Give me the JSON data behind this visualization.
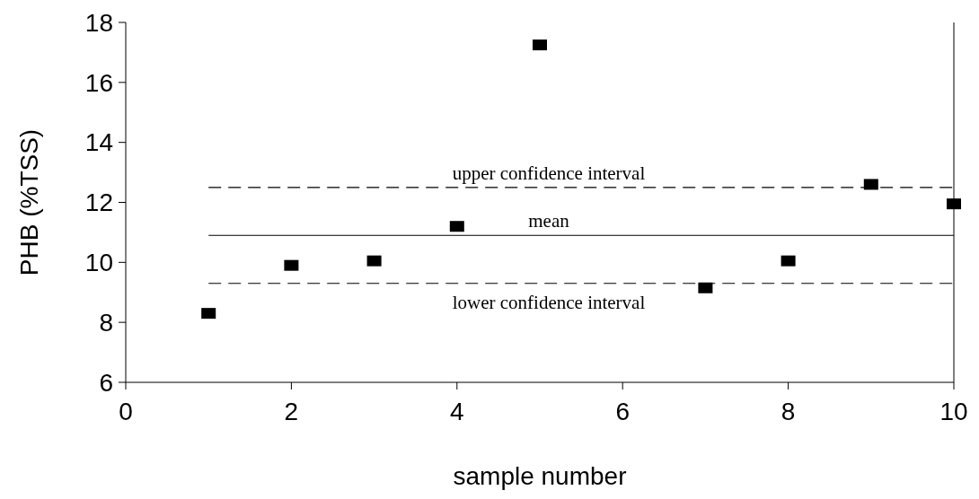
{
  "chart_data": {
    "type": "scatter",
    "xlabel": "sample number",
    "ylabel": "PHB (%TSS)",
    "x": [
      1,
      2,
      3,
      4,
      5,
      7,
      8,
      9,
      10
    ],
    "values": [
      8.3,
      9.9,
      10.05,
      11.2,
      17.25,
      9.15,
      10.05,
      12.6,
      11.95
    ],
    "color": "#000000",
    "marker": "square",
    "xlim": [
      0,
      10
    ],
    "xticks": [
      0,
      2,
      4,
      6,
      8,
      10
    ],
    "ylim": [
      6,
      18
    ],
    "yticks": [
      6,
      8,
      10,
      12,
      14,
      16,
      18
    ],
    "ref_lines": [
      {
        "axis": "y",
        "value": 12.5,
        "label": "upper confidence interval",
        "line_style": "dashed",
        "color": "#000000"
      },
      {
        "axis": "y",
        "value": 10.9,
        "label": "mean",
        "line_style": "solid",
        "color": "#000000"
      },
      {
        "axis": "y",
        "value": 9.3,
        "label": "lower confidence interval",
        "line_style": "dashed",
        "color": "#000000"
      }
    ],
    "grid": false
  }
}
